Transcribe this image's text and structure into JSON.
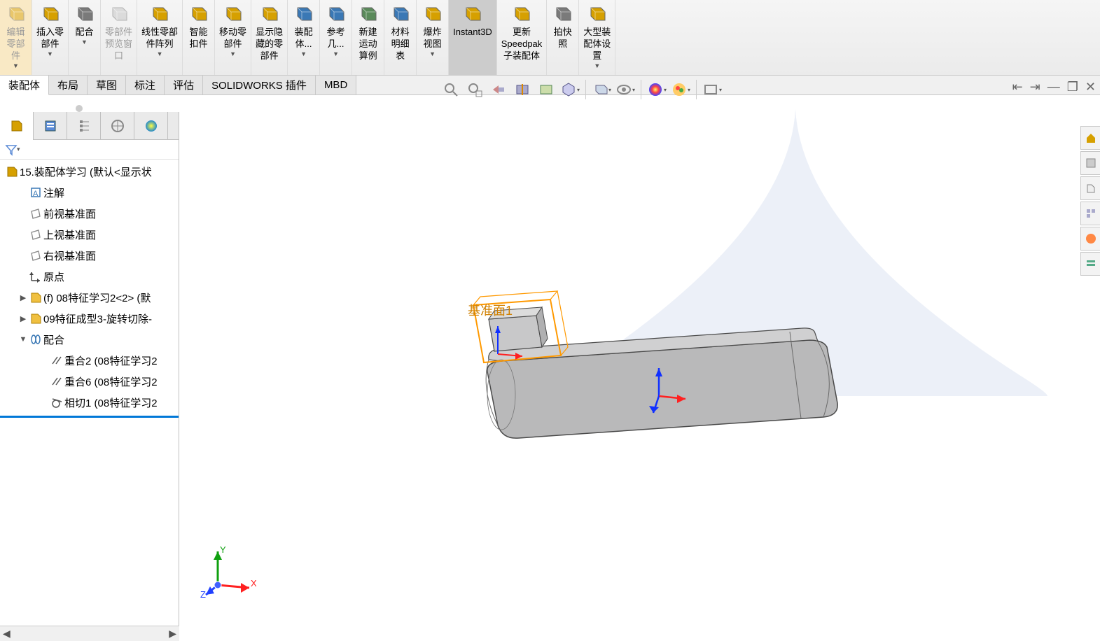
{
  "ribbon": {
    "buttons": [
      {
        "id": "edit-part",
        "label": "编辑\n零部\n件",
        "drop": true,
        "disabled": true
      },
      {
        "id": "insert-part",
        "label": "插入零\n部件",
        "drop": true
      },
      {
        "id": "mate",
        "label": "配合",
        "drop": true
      },
      {
        "id": "preview-window",
        "label": "零部件\n预览窗\n口",
        "disabled": true
      },
      {
        "id": "linear-pattern",
        "label": "线性零部\n件阵列",
        "drop": true
      },
      {
        "id": "smart-fastener",
        "label": "智能\n扣件"
      },
      {
        "id": "move-part",
        "label": "移动零\n部件",
        "drop": true
      },
      {
        "id": "show-hide",
        "label": "显示隐\n藏的零\n部件"
      },
      {
        "id": "assembly-feat",
        "label": "装配\n体...",
        "drop": true
      },
      {
        "id": "ref-geom",
        "label": "参考\n几...",
        "drop": true
      },
      {
        "id": "new-motion",
        "label": "新建\n运动\n算例"
      },
      {
        "id": "bom",
        "label": "材料\n明细\n表"
      },
      {
        "id": "exploded-view",
        "label": "爆炸\n视图",
        "drop": true
      },
      {
        "id": "instant3d",
        "label": "Instant3D",
        "active": true
      },
      {
        "id": "update-speedpak",
        "label": "更新\nSpeedpak\n子装配体"
      },
      {
        "id": "snapshot",
        "label": "拍快\n照"
      },
      {
        "id": "large-asm",
        "label": "大型装\n配体设\n置",
        "drop": true
      }
    ],
    "icon_colors": {
      "edit-part": "#d6a000",
      "insert-part": "#d6a000",
      "mate": "#7a7a7a",
      "preview-window": "#bfbfbf",
      "linear-pattern": "#d6a000",
      "smart-fastener": "#d6a000",
      "move-part": "#d6a000",
      "show-hide": "#d6a000",
      "assembly-feat": "#3a78b5",
      "ref-geom": "#3a78b5",
      "new-motion": "#5a8a5a",
      "bom": "#3a78b5",
      "exploded-view": "#d6a000",
      "instant3d": "#d6a000",
      "update-speedpak": "#d6a000",
      "snapshot": "#7a7a7a",
      "large-asm": "#d6a000"
    }
  },
  "ribbon_tabs": [
    {
      "id": "assembly",
      "label": "装配体",
      "active": true
    },
    {
      "id": "layout",
      "label": "布局"
    },
    {
      "id": "sketch",
      "label": "草图"
    },
    {
      "id": "annotate",
      "label": "标注"
    },
    {
      "id": "evaluate",
      "label": "评估"
    },
    {
      "id": "addins",
      "label": "SOLIDWORKS 插件"
    },
    {
      "id": "mbd",
      "label": "MBD"
    }
  ],
  "tree": {
    "root": {
      "icon": "asm",
      "label": "15.装配体学习 (默认<显示状"
    },
    "items": [
      {
        "icon": "ann",
        "label": "注解",
        "lvl": 1
      },
      {
        "icon": "plane",
        "label": "前视基准面",
        "lvl": 1
      },
      {
        "icon": "plane",
        "label": "上视基准面",
        "lvl": 1
      },
      {
        "icon": "plane",
        "label": "右视基准面",
        "lvl": 1
      },
      {
        "icon": "origin",
        "label": "原点",
        "lvl": 1
      },
      {
        "icon": "part",
        "label": "(f) 08特征学习2<2> (默",
        "lvl": 1,
        "exp": "▶"
      },
      {
        "icon": "part",
        "label": "09特征成型3-旋转切除-",
        "lvl": 1,
        "exp": "▶"
      },
      {
        "icon": "mates",
        "label": "配合",
        "lvl": 1,
        "exp": "▼"
      },
      {
        "icon": "mate",
        "label": "重合2 (08特征学习2",
        "lvl": 2
      },
      {
        "icon": "mate",
        "label": "重合6 (08特征学习2",
        "lvl": 2
      },
      {
        "icon": "tangent",
        "label": "相切1 (08特征学习2",
        "lvl": 2
      }
    ]
  },
  "plane_label": "基准面1",
  "triad": {
    "x_color": "#ff2020",
    "y_color": "#10a010",
    "z_color": "#2040ff",
    "x_label": "X",
    "y_label": "Y",
    "z_label": "Z"
  },
  "colors": {
    "ribbon_bg_top": "#f5f5f5",
    "ribbon_bg_bot": "#ebebeb",
    "border": "#c8c8c8",
    "active_btn": "#cccccc",
    "horizon": "#e8edf6",
    "part_fill": "#b9b9ba",
    "part_stroke": "#4a4a4a",
    "highlight": "#ff9900",
    "origin_arrow": "#1030ff"
  }
}
